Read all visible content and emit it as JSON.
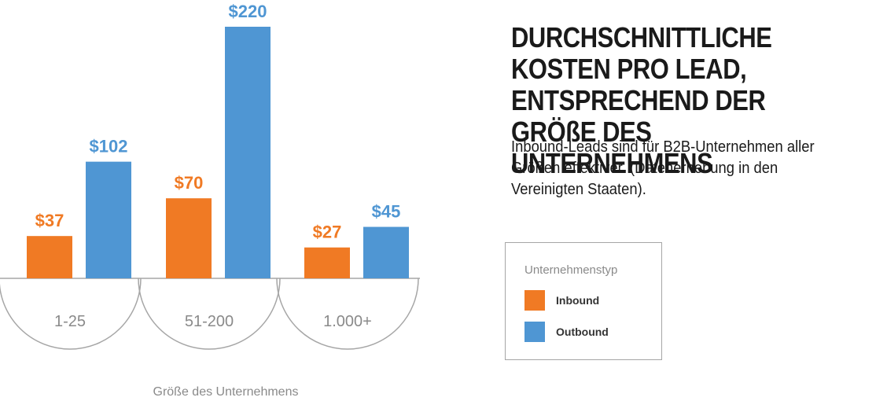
{
  "title": "DURCHSCHNITTLICHE KOSTEN PRO LEAD, ENTSPRECHEND DER GRÖßE DES UNTERNEHMENS",
  "subtitle": "Inbound-Leads sind für B2B-Unternehmen aller Größen effektiver. (Datenerhebung in den Vereinigten Staaten).",
  "legend": {
    "title": "Unternehmenstyp",
    "items": [
      {
        "label": "Inbound",
        "color": "#f07a24"
      },
      {
        "label": "Outbound",
        "color": "#4f96d3"
      }
    ]
  },
  "chart_data": {
    "type": "bar",
    "categories": [
      "1-25",
      "51-200",
      "1.000+"
    ],
    "series": [
      {
        "name": "Inbound",
        "values": [
          37,
          70,
          27
        ],
        "labels": [
          "$37",
          "$70",
          "$27"
        ],
        "color": "#f07a24"
      },
      {
        "name": "Outbound",
        "values": [
          102,
          220,
          45
        ],
        "labels": [
          "$102",
          "$220",
          "$45"
        ],
        "color": "#4f96d3"
      }
    ],
    "xlabel": "Größe des Unternehmens",
    "ylabel": "",
    "ylim": [
      0,
      220
    ],
    "grid": false,
    "legend_position": "right"
  }
}
